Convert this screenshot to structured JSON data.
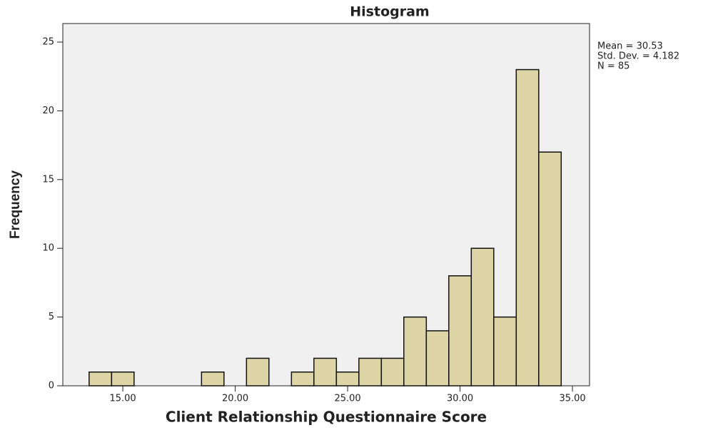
{
  "chart_data": {
    "type": "histogram",
    "title": "Histogram",
    "x_label": "Client Relationship Questionnaire Score",
    "y_label": "Frequency",
    "annotations": [
      "Mean = 30.53",
      "Std. Dev. = 4.182",
      "N = 85"
    ],
    "bins": [
      13.5,
      14.5,
      15.5,
      16.5,
      17.5,
      18.5,
      19.5,
      20.5,
      21.5,
      22.5,
      23.5,
      24.5,
      25.5,
      26.5,
      27.5,
      28.5,
      29.5,
      30.5,
      31.5,
      32.5,
      33.5,
      34.5
    ],
    "counts": [
      1,
      1,
      0,
      0,
      0,
      1,
      0,
      2,
      0,
      1,
      2,
      1,
      2,
      2,
      5,
      4,
      8,
      10,
      5,
      23,
      17
    ],
    "color": "#ddd5a5",
    "xlim": [
      12.33,
      35.76
    ],
    "ylim": [
      0,
      26.35
    ],
    "xticks": [
      {
        "value": 15,
        "label": "15.00"
      },
      {
        "value": 20,
        "label": "20.00"
      },
      {
        "value": 25,
        "label": "25.00"
      },
      {
        "value": 30,
        "label": "30.00"
      },
      {
        "value": 35,
        "label": "35.00"
      }
    ],
    "yticks": [
      0,
      5,
      10,
      15,
      20,
      25
    ]
  }
}
